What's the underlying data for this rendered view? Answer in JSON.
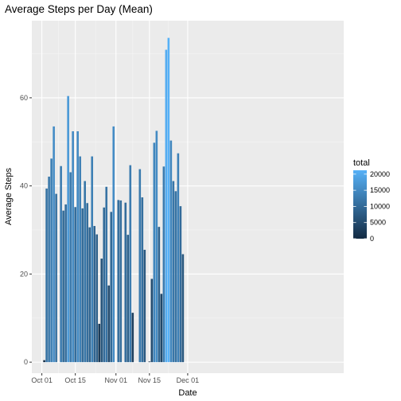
{
  "chart_data": {
    "type": "bar",
    "title": "Average Steps per Day (Mean)",
    "xlabel": "Date",
    "ylabel": "Average Steps",
    "x_start": "2012-10-01",
    "x_ticks": [
      {
        "date": "2012-10-01",
        "label": "Oct 01"
      },
      {
        "date": "2012-10-15",
        "label": "Oct 15"
      },
      {
        "date": "2012-11-01",
        "label": "Nov 01"
      },
      {
        "date": "2012-11-15",
        "label": "Nov 15"
      },
      {
        "date": "2012-12-01",
        "label": "Dec 01"
      }
    ],
    "y_ticks": [
      0,
      20,
      40,
      60
    ],
    "ylim": [
      -2.5,
      77.5
    ],
    "grid": true,
    "legend": {
      "title": "total",
      "position": "right",
      "colorbar_labels": [
        0,
        5000,
        10000,
        15000,
        20000
      ],
      "range": [
        0,
        21194
      ],
      "low_color": "#132B43",
      "high_color": "#56B1F7"
    },
    "x": [
      "2012-10-02",
      "2012-10-03",
      "2012-10-04",
      "2012-10-05",
      "2012-10-06",
      "2012-10-07",
      "2012-10-09",
      "2012-10-10",
      "2012-10-11",
      "2012-10-12",
      "2012-10-13",
      "2012-10-14",
      "2012-10-15",
      "2012-10-16",
      "2012-10-17",
      "2012-10-18",
      "2012-10-19",
      "2012-10-20",
      "2012-10-21",
      "2012-10-22",
      "2012-10-23",
      "2012-10-24",
      "2012-10-25",
      "2012-10-26",
      "2012-10-27",
      "2012-10-28",
      "2012-10-29",
      "2012-10-30",
      "2012-10-31",
      "2012-11-02",
      "2012-11-03",
      "2012-11-05",
      "2012-11-06",
      "2012-11-07",
      "2012-11-08",
      "2012-11-11",
      "2012-11-12",
      "2012-11-13",
      "2012-11-15",
      "2012-11-16",
      "2012-11-17",
      "2012-11-18",
      "2012-11-19",
      "2012-11-20",
      "2012-11-21",
      "2012-11-22",
      "2012-11-23",
      "2012-11-24",
      "2012-11-25",
      "2012-11-26",
      "2012-11-27",
      "2012-11-28",
      "2012-11-29"
    ],
    "values": [
      0.44,
      39.4,
      42.1,
      46.2,
      53.5,
      38.2,
      44.5,
      34.4,
      35.8,
      60.4,
      43.1,
      52.4,
      35.2,
      52.4,
      46.7,
      34.9,
      41.1,
      36.1,
      30.6,
      46.7,
      30.9,
      29.0,
      8.7,
      23.5,
      35.1,
      39.8,
      17.4,
      34.1,
      53.5,
      36.8,
      36.7,
      36.2,
      28.9,
      44.7,
      11.2,
      43.8,
      37.4,
      25.5,
      0.14,
      18.9,
      49.8,
      52.5,
      30.7,
      15.5,
      44.4,
      70.9,
      73.6,
      50.3,
      41.1,
      38.8,
      47.4,
      35.4,
      24.5
    ]
  }
}
